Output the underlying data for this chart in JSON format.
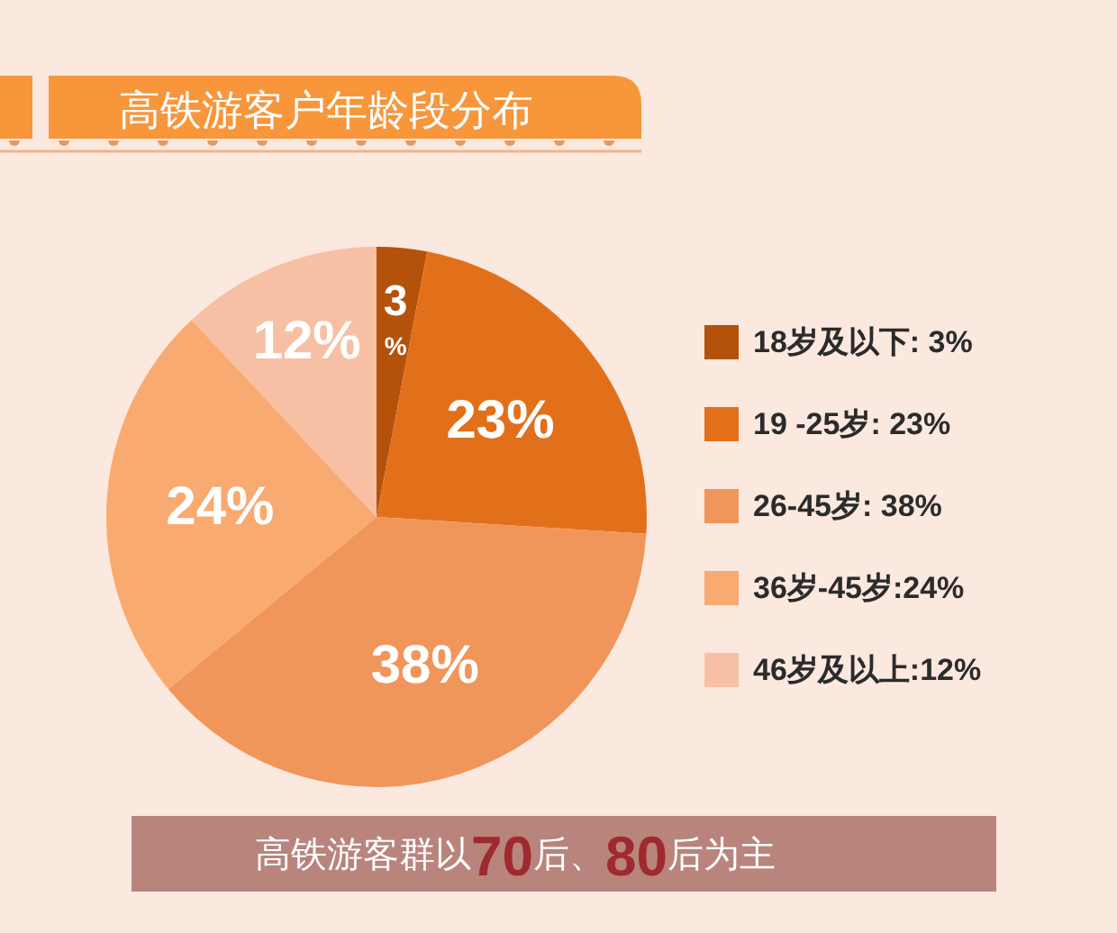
{
  "chart_data": {
    "type": "pie",
    "title": "高铁游客户年龄段分布",
    "categories": [
      "18岁及以下: 3%",
      "19 -25岁: 23%",
      "26-45岁: 38%",
      "36岁-45岁:24%",
      "46岁及以上:12%"
    ],
    "values": [
      3,
      23,
      38,
      24,
      12
    ],
    "colors": [
      "#b4520c",
      "#e2701b",
      "#f0965a",
      "#f9aa70",
      "#f7c0a4"
    ],
    "value_labels": [
      "3%",
      "23%",
      "38%",
      "24%",
      "12%"
    ],
    "legend": "right",
    "annotations": [
      "高铁游客群以70后、80后为主"
    ]
  }
}
